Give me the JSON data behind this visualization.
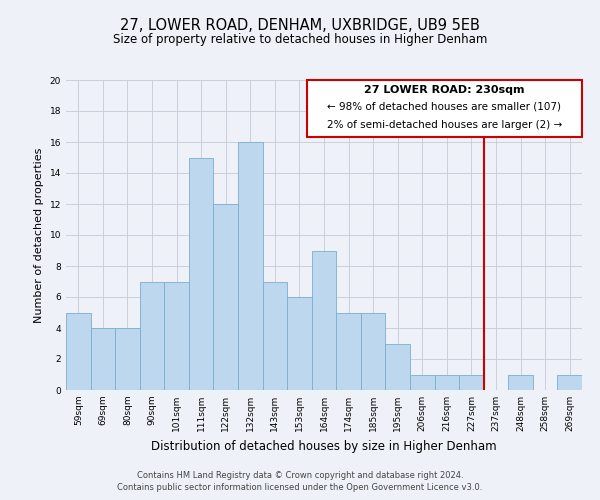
{
  "title": "27, LOWER ROAD, DENHAM, UXBRIDGE, UB9 5EB",
  "subtitle": "Size of property relative to detached houses in Higher Denham",
  "xlabel": "Distribution of detached houses by size in Higher Denham",
  "ylabel": "Number of detached properties",
  "bin_labels": [
    "59sqm",
    "69sqm",
    "80sqm",
    "90sqm",
    "101sqm",
    "111sqm",
    "122sqm",
    "132sqm",
    "143sqm",
    "153sqm",
    "164sqm",
    "174sqm",
    "185sqm",
    "195sqm",
    "206sqm",
    "216sqm",
    "227sqm",
    "237sqm",
    "248sqm",
    "258sqm",
    "269sqm"
  ],
  "bar_heights": [
    5,
    4,
    4,
    7,
    7,
    15,
    12,
    16,
    7,
    6,
    9,
    5,
    5,
    3,
    1,
    1,
    1,
    0,
    1,
    0,
    1
  ],
  "bar_color": "#bdd7ee",
  "bar_edgecolor": "#7aaece",
  "grid_color": "#c8d0dc",
  "background_color": "#eef2f8",
  "vline_x_index": 16.5,
  "vline_color": "#cc0000",
  "annotation_title": "27 LOWER ROAD: 230sqm",
  "annotation_line1": "← 98% of detached houses are smaller (107)",
  "annotation_line2": "2% of semi-detached houses are larger (2) →",
  "annotation_box_edgecolor": "#cc0000",
  "annotation_box_facecolor": "#ffffff",
  "ylim": [
    0,
    20
  ],
  "yticks": [
    0,
    2,
    4,
    6,
    8,
    10,
    12,
    14,
    16,
    18,
    20
  ],
  "footnote1": "Contains HM Land Registry data © Crown copyright and database right 2024.",
  "footnote2": "Contains public sector information licensed under the Open Government Licence v3.0.",
  "title_fontsize": 10.5,
  "subtitle_fontsize": 8.5,
  "xlabel_fontsize": 8.5,
  "ylabel_fontsize": 8,
  "tick_fontsize": 6.5,
  "footnote_fontsize": 6,
  "annotation_title_fontsize": 8,
  "annotation_text_fontsize": 7.5
}
